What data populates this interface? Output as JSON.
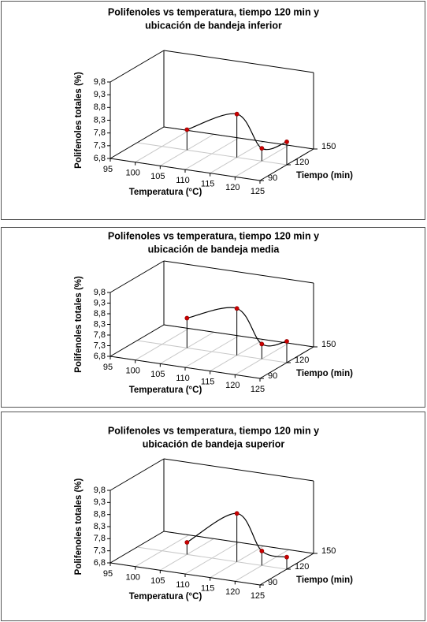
{
  "chart_data": [
    {
      "type": "line3d",
      "title": [
        "Polifenoles vs temperatura, tiempo 120 min y",
        "ubicación de bandeja inferior"
      ],
      "xlabel": "Temperatura (°C)",
      "ylabel": "Polifenoles totales (%)",
      "zlabel": "Tiempo (min)",
      "x": [
        105,
        115,
        120,
        125
      ],
      "z": [
        120,
        120,
        120,
        120
      ],
      "values": [
        7.6,
        8.5,
        7.3,
        7.7
      ],
      "color": "#cc0000",
      "line_color": "#000000",
      "xlim": [
        95,
        125
      ],
      "xticks": [
        95,
        100,
        105,
        110,
        115,
        120,
        125
      ],
      "zlim": [
        90,
        150
      ],
      "zticks": [
        90,
        120,
        150
      ],
      "ylim": [
        6.8,
        9.8
      ],
      "yticks": [
        {
          "value": 6.8,
          "label": "6,8"
        },
        {
          "value": 7.3,
          "label": "7,3"
        },
        {
          "value": 7.8,
          "label": "7,8"
        },
        {
          "value": 8.3,
          "label": "8,3"
        },
        {
          "value": 8.8,
          "label": "8,8"
        },
        {
          "value": 9.3,
          "label": "9,3"
        },
        {
          "value": 9.8,
          "label": "9,8"
        }
      ],
      "grid": true
    },
    {
      "type": "line3d",
      "title": [
        "Polifenoles vs temperatura, tiempo 120 min y",
        "ubicación de bandeja media"
      ],
      "xlabel": "Temperatura (°C)",
      "ylabel": "Polifenoles totales (%)",
      "zlabel": "Tiempo (min)",
      "x": [
        105,
        115,
        120,
        125
      ],
      "z": [
        120,
        120,
        120,
        120
      ],
      "values": [
        8.2,
        9.0,
        7.5,
        7.8
      ],
      "color": "#cc0000",
      "line_color": "#000000",
      "xlim": [
        95,
        125
      ],
      "xticks": [
        95,
        100,
        105,
        110,
        115,
        120,
        125
      ],
      "zlim": [
        90,
        150
      ],
      "zticks": [
        90,
        120,
        150
      ],
      "ylim": [
        6.8,
        9.8
      ],
      "yticks": [
        {
          "value": 6.8,
          "label": "6,8"
        },
        {
          "value": 7.3,
          "label": "7,3"
        },
        {
          "value": 7.8,
          "label": "7,8"
        },
        {
          "value": 8.3,
          "label": "8,3"
        },
        {
          "value": 8.8,
          "label": "8,8"
        },
        {
          "value": 9.3,
          "label": "9,3"
        },
        {
          "value": 9.8,
          "label": "9,8"
        }
      ],
      "grid": true
    },
    {
      "type": "line3d",
      "title": [
        "Polifenoles vs temperatura, tiempo 120 min y",
        "ubicación de bandeja superior"
      ],
      "xlabel": "Temperatura (°C)",
      "ylabel": "Polifenoles totales (%)",
      "zlabel": "Tiempo (min)",
      "x": [
        105,
        115,
        120,
        125
      ],
      "z": [
        120,
        120,
        120,
        120
      ],
      "values": [
        7.3,
        8.8,
        7.4,
        7.3
      ],
      "color": "#cc0000",
      "line_color": "#000000",
      "xlim": [
        95,
        125
      ],
      "xticks": [
        95,
        100,
        105,
        110,
        115,
        120,
        125
      ],
      "zlim": [
        90,
        150
      ],
      "zticks": [
        90,
        120,
        150
      ],
      "ylim": [
        6.8,
        9.8
      ],
      "yticks": [
        {
          "value": 6.8,
          "label": "6,8"
        },
        {
          "value": 7.3,
          "label": "7,3"
        },
        {
          "value": 7.8,
          "label": "7,8"
        },
        {
          "value": 8.3,
          "label": "8,3"
        },
        {
          "value": 8.8,
          "label": "8,8"
        },
        {
          "value": 9.3,
          "label": "9,3"
        },
        {
          "value": 9.8,
          "label": "9,8"
        }
      ],
      "grid": true
    }
  ]
}
